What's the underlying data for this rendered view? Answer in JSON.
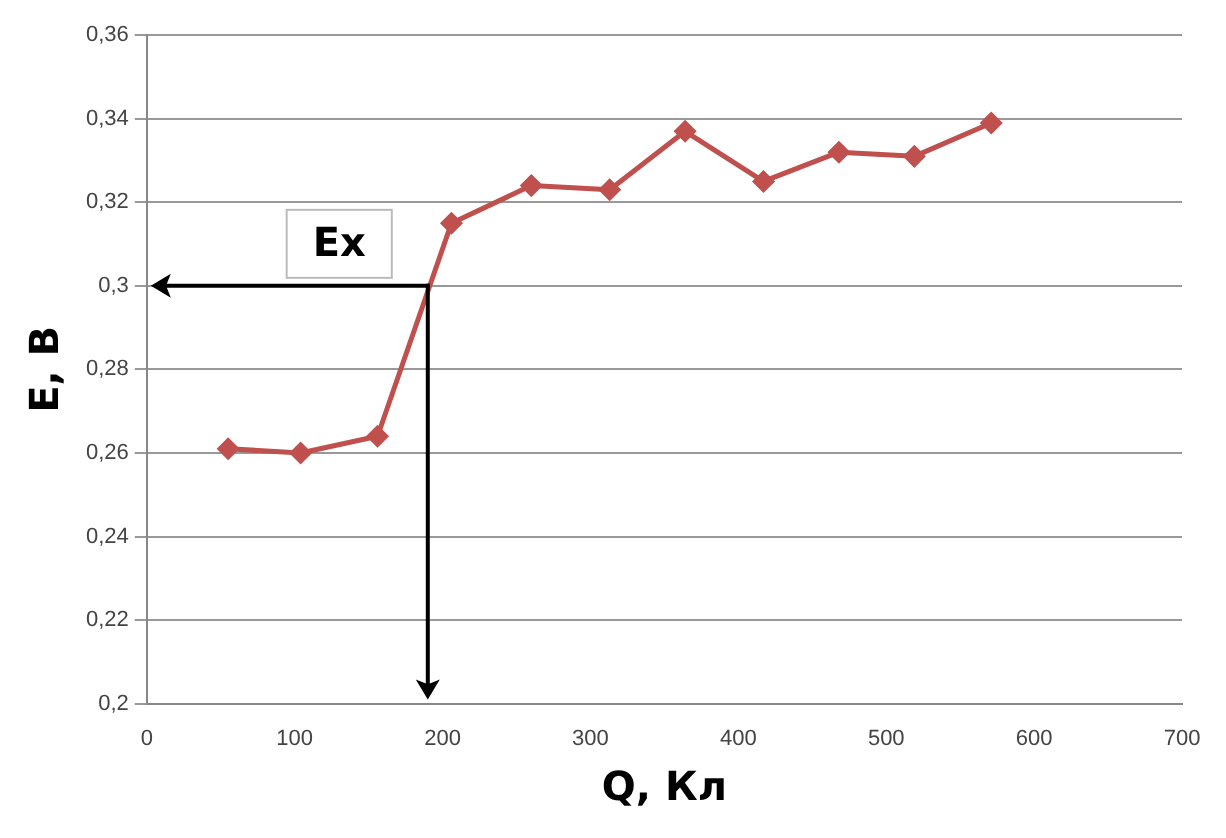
{
  "chart_data": {
    "type": "line",
    "xlabel": "Q, Кл",
    "ylabel": "E, В",
    "x": [
      55,
      104,
      156,
      206,
      260,
      313,
      364,
      417,
      468,
      519,
      571
    ],
    "series": [
      {
        "color": "#c0504d",
        "values": [
          0.261,
          0.26,
          0.264,
          0.315,
          0.324,
          0.323,
          0.337,
          0.325,
          0.332,
          0.331,
          0.339
        ]
      }
    ],
    "xlim": [
      0,
      700
    ],
    "xticks": [
      0,
      100,
      200,
      300,
      400,
      500,
      600,
      700
    ],
    "ylim": [
      0.2,
      0.36
    ],
    "yticks": [
      {
        "value": 0.2,
        "label": "0,2"
      },
      {
        "value": 0.22,
        "label": "0,22"
      },
      {
        "value": 0.24,
        "label": "0,24"
      },
      {
        "value": 0.26,
        "label": "0,26"
      },
      {
        "value": 0.28,
        "label": "0,28"
      },
      {
        "value": 0.3,
        "label": "0,3"
      },
      {
        "value": 0.32,
        "label": "0,32"
      },
      {
        "value": 0.34,
        "label": "0,34"
      },
      {
        "value": 0.36,
        "label": "0,36"
      }
    ],
    "grid": "y",
    "legend": false,
    "marker": "diamond",
    "line_style": "solid",
    "annotations": [
      {
        "text": "Ex",
        "x": 190,
        "y": 0.3
      }
    ]
  }
}
